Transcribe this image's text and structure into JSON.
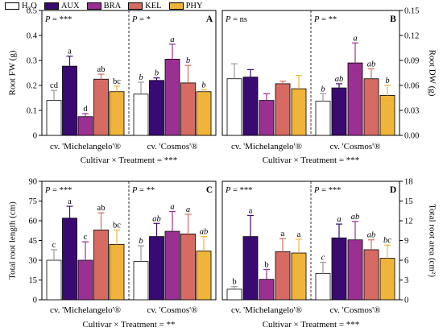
{
  "legend": [
    {
      "label": "H₂O",
      "color": "#ffffff"
    },
    {
      "label": "AUX",
      "color": "#3a0a73"
    },
    {
      "label": "BRA",
      "color": "#9b3093"
    },
    {
      "label": "KEL",
      "color": "#d66b63"
    },
    {
      "label": "PHY",
      "color": "#f0b43a"
    }
  ],
  "errorbar_colors": [
    "#9a9a9a",
    "#3a0a73",
    "#9b3093",
    "#d66b63",
    "#f0b43a"
  ],
  "cultivars": [
    "cv. 'Michelangelo'®",
    "cv. 'Cosmos'®"
  ],
  "chart_data": [
    {
      "type": "bar",
      "panel": "A",
      "ylabel": "Root FW (g)",
      "ylabel_side": "left",
      "ylim": [
        0,
        0.5
      ],
      "yticks": [
        "0",
        "0.1",
        "0.2",
        "0.3",
        "0.4",
        "0.5"
      ],
      "cultivar_p": [
        "P = ***",
        "P = *"
      ],
      "interaction": "Cultivar × Treatment = ***",
      "groups": [
        {
          "cultivar": "cv. 'Michelangelo'®",
          "values": [
            0.14,
            0.277,
            0.075,
            0.225,
            0.175
          ],
          "errors": [
            0.04,
            0.04,
            0.012,
            0.02,
            0.022
          ],
          "letters": [
            "cd",
            "a",
            "d",
            "ab",
            "bc"
          ],
          "italic_letters": false
        },
        {
          "cultivar": "cv. 'Cosmos'®",
          "values": [
            0.165,
            0.22,
            0.305,
            0.21,
            0.175
          ],
          "errors": [
            0.048,
            0.01,
            0.06,
            0.07,
            0.008
          ],
          "letters": [
            "b",
            "b",
            "a",
            "b",
            "b"
          ],
          "italic_letters": true
        }
      ]
    },
    {
      "type": "bar",
      "panel": "B",
      "ylabel": "Root DW (g)",
      "ylabel_side": "right",
      "ylim": [
        0,
        0.15
      ],
      "yticks": [
        "0.00",
        "0.03",
        "0.06",
        "0.09",
        "0.12",
        "0.15"
      ],
      "cultivar_p": [
        "P = ns",
        "P = **"
      ],
      "interaction": "Cultivar × Treatment = ***",
      "groups": [
        {
          "cultivar": "cv. 'Michelangelo'®",
          "values": [
            0.068,
            0.07,
            0.042,
            0.062,
            0.056
          ],
          "errors": [
            0.018,
            0.009,
            0.008,
            0.003,
            0.016
          ],
          "letters": [
            "",
            "",
            "",
            "",
            ""
          ],
          "italic_letters": false
        },
        {
          "cultivar": "cv. 'Cosmos'®",
          "values": [
            0.041,
            0.057,
            0.087,
            0.068,
            0.048
          ],
          "errors": [
            0.009,
            0.005,
            0.024,
            0.012,
            0.012
          ],
          "letters": [
            "b",
            "ab",
            "a",
            "ab",
            "b"
          ],
          "italic_letters": true
        }
      ]
    },
    {
      "type": "bar",
      "panel": "C",
      "ylabel": "Total root length (cm)",
      "ylabel_side": "left",
      "ylim": [
        0,
        90
      ],
      "yticks": [
        "0",
        "15",
        "30",
        "45",
        "60",
        "75",
        "90"
      ],
      "cultivar_p": [
        "P = ***",
        "P = **"
      ],
      "interaction": "Cultivar × Treatment = **",
      "groups": [
        {
          "cultivar": "cv. 'Michelangelo'®",
          "values": [
            30,
            62,
            30,
            53,
            42
          ],
          "errors": [
            8,
            9,
            14,
            13,
            11
          ],
          "letters": [
            "c",
            "a",
            "c",
            "ab",
            "bc"
          ],
          "italic_letters": false
        },
        {
          "cultivar": "cv. 'Cosmos'®",
          "values": [
            29,
            48,
            52,
            50,
            37
          ],
          "errors": [
            12,
            10,
            15,
            15,
            11
          ],
          "letters": [
            "b",
            "ab",
            "a",
            "a",
            "ab"
          ],
          "italic_letters": true
        }
      ]
    },
    {
      "type": "bar",
      "panel": "D",
      "ylabel": "Total root area (cm²)",
      "ylabel_side": "right",
      "ylim": [
        0,
        18
      ],
      "yticks": [
        "0",
        "3",
        "6",
        "9",
        "12",
        "15",
        "18"
      ],
      "cultivar_p": [
        "P = ***",
        "P = ***"
      ],
      "interaction": "Cultivar × Treatment = ***",
      "groups": [
        {
          "cultivar": "cv. 'Michelangelo'®",
          "values": [
            1.6,
            9.6,
            3.1,
            7.3,
            7.1
          ],
          "errors": [
            0.4,
            3.2,
            1.5,
            2.0,
            2.1
          ],
          "letters": [
            "b",
            "a",
            "b",
            "a",
            "a"
          ],
          "italic_letters": false
        },
        {
          "cultivar": "cv. 'Cosmos'®",
          "values": [
            4.0,
            9.4,
            9.1,
            7.6,
            6.3
          ],
          "errors": [
            1.7,
            2.1,
            2.8,
            1.5,
            2.0
          ],
          "letters": [
            "c",
            "a",
            "ab",
            "ab",
            "bc"
          ],
          "italic_letters": true
        }
      ]
    }
  ]
}
